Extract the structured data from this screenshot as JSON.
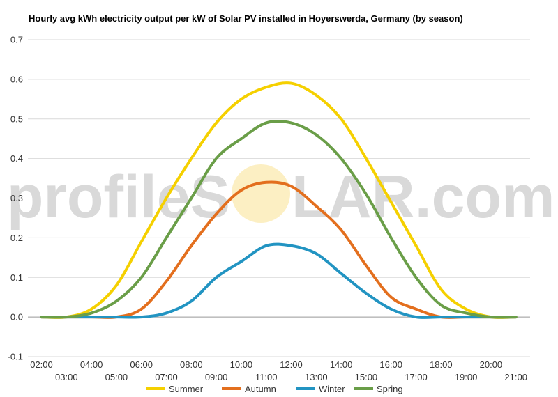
{
  "chart_data": {
    "type": "line",
    "title": "Hourly avg kWh electricity output per kW of Solar PV installed in Hoyerswerda, Germany (by season)",
    "xlabel": "",
    "ylabel": "",
    "ylim": [
      -0.1,
      0.7
    ],
    "yticks": [
      "-0.1",
      "0.0",
      "0.1",
      "0.2",
      "0.3",
      "0.4",
      "0.5",
      "0.6",
      "0.7"
    ],
    "x": [
      "02:00",
      "03:00",
      "04:00",
      "05:00",
      "06:00",
      "07:00",
      "08:00",
      "09:00",
      "10:00",
      "11:00",
      "12:00",
      "13:00",
      "14:00",
      "15:00",
      "16:00",
      "17:00",
      "18:00",
      "19:00",
      "20:00",
      "21:00"
    ],
    "grid": true,
    "legend_position": "bottom",
    "series": [
      {
        "name": "Summer",
        "color": "#f5d000",
        "values": [
          0,
          0,
          0.02,
          0.08,
          0.19,
          0.3,
          0.4,
          0.49,
          0.55,
          0.58,
          0.59,
          0.56,
          0.5,
          0.4,
          0.29,
          0.18,
          0.07,
          0.02,
          0,
          0
        ]
      },
      {
        "name": "Autumn",
        "color": "#e36f1e",
        "values": [
          0,
          0,
          0,
          0,
          0.02,
          0.09,
          0.18,
          0.26,
          0.32,
          0.34,
          0.33,
          0.28,
          0.22,
          0.13,
          0.05,
          0.02,
          0,
          0,
          0,
          0
        ]
      },
      {
        "name": "Winter",
        "color": "#2294c2",
        "values": [
          0,
          0,
          0,
          0,
          0,
          0.01,
          0.04,
          0.1,
          0.14,
          0.18,
          0.18,
          0.16,
          0.11,
          0.06,
          0.02,
          0,
          0,
          0,
          0,
          0
        ]
      },
      {
        "name": "Spring",
        "color": "#6a9e48",
        "values": [
          0,
          0,
          0.01,
          0.04,
          0.1,
          0.2,
          0.3,
          0.4,
          0.45,
          0.49,
          0.49,
          0.46,
          0.4,
          0.31,
          0.2,
          0.1,
          0.03,
          0.01,
          0,
          0
        ]
      }
    ]
  },
  "watermark": {
    "text_left": "profileS",
    "text_right": "LAR.com",
    "sun_color": "#fcecb8"
  }
}
